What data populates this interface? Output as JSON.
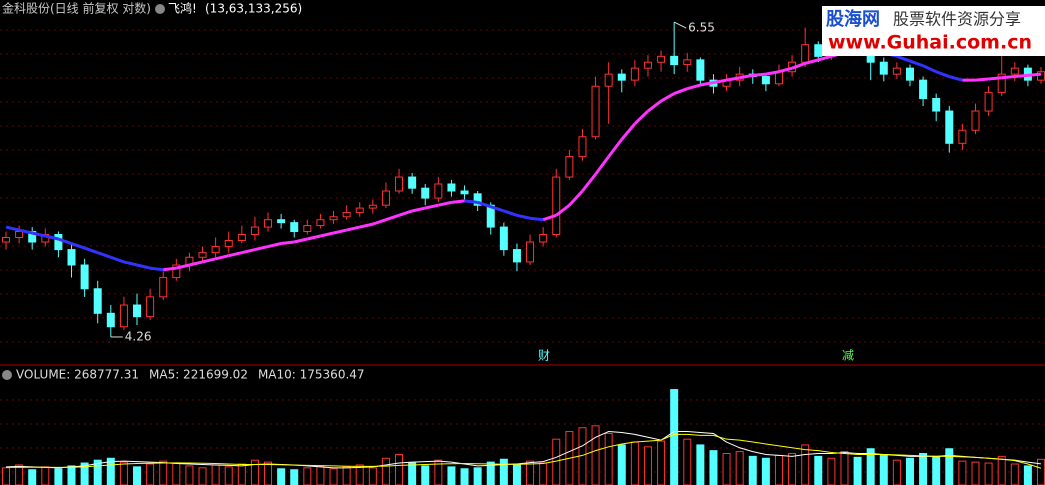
{
  "chart_data": [
    {
      "type": "candlestick",
      "title": "金科股份(日线 前复权 对数)",
      "indicator_name": "飞鸿!",
      "indicator_params": "(13,63,133,256)",
      "log_scale": true,
      "ylim": [
        4.1,
        6.75
      ],
      "grid": true,
      "up_color": "#ff3232",
      "down_color": "#54ffff",
      "high_label": "6.55",
      "low_label": "4.26",
      "events": [
        "财",
        "减"
      ],
      "candles": [
        [
          4.85,
          4.92,
          4.8,
          4.88
        ],
        [
          4.88,
          4.96,
          4.84,
          4.92
        ],
        [
          4.92,
          4.95,
          4.8,
          4.85
        ],
        [
          4.85,
          4.94,
          4.82,
          4.9
        ],
        [
          4.9,
          4.92,
          4.75,
          4.8
        ],
        [
          4.8,
          4.84,
          4.62,
          4.7
        ],
        [
          4.7,
          4.74,
          4.5,
          4.55
        ],
        [
          4.55,
          4.6,
          4.34,
          4.4
        ],
        [
          4.4,
          4.45,
          4.26,
          4.32
        ],
        [
          4.32,
          4.5,
          4.3,
          4.45
        ],
        [
          4.45,
          4.52,
          4.33,
          4.38
        ],
        [
          4.38,
          4.55,
          4.36,
          4.5
        ],
        [
          4.5,
          4.66,
          4.48,
          4.62
        ],
        [
          4.62,
          4.74,
          4.6,
          4.7
        ],
        [
          4.7,
          4.78,
          4.66,
          4.75
        ],
        [
          4.75,
          4.82,
          4.72,
          4.78
        ],
        [
          4.78,
          4.88,
          4.75,
          4.82
        ],
        [
          4.82,
          4.92,
          4.78,
          4.86
        ],
        [
          4.86,
          4.96,
          4.84,
          4.9
        ],
        [
          4.9,
          5.02,
          4.86,
          4.95
        ],
        [
          4.95,
          5.05,
          4.92,
          5.0
        ],
        [
          5.0,
          5.04,
          4.94,
          4.98
        ],
        [
          4.98,
          5.0,
          4.88,
          4.92
        ],
        [
          4.92,
          5.0,
          4.9,
          4.96
        ],
        [
          4.96,
          5.04,
          4.94,
          5.0
        ],
        [
          5.0,
          5.06,
          4.97,
          5.02
        ],
        [
          5.02,
          5.1,
          5.0,
          5.05
        ],
        [
          5.05,
          5.12,
          5.02,
          5.08
        ],
        [
          5.08,
          5.14,
          5.04,
          5.1
        ],
        [
          5.1,
          5.26,
          5.08,
          5.2
        ],
        [
          5.2,
          5.36,
          5.18,
          5.3
        ],
        [
          5.3,
          5.33,
          5.18,
          5.22
        ],
        [
          5.22,
          5.25,
          5.1,
          5.15
        ],
        [
          5.15,
          5.3,
          5.12,
          5.25
        ],
        [
          5.25,
          5.28,
          5.16,
          5.2
        ],
        [
          5.2,
          5.24,
          5.14,
          5.18
        ],
        [
          5.18,
          5.2,
          5.06,
          5.1
        ],
        [
          5.1,
          5.12,
          4.9,
          4.95
        ],
        [
          4.95,
          4.98,
          4.76,
          4.8
        ],
        [
          4.8,
          4.84,
          4.66,
          4.72
        ],
        [
          4.72,
          4.9,
          4.7,
          4.85
        ],
        [
          4.85,
          4.95,
          4.82,
          4.9
        ],
        [
          4.9,
          5.36,
          4.88,
          5.3
        ],
        [
          5.3,
          5.5,
          5.28,
          5.45
        ],
        [
          5.45,
          5.66,
          5.42,
          5.6
        ],
        [
          5.6,
          6.08,
          5.58,
          6.0
        ],
        [
          6.0,
          6.2,
          5.7,
          6.1
        ],
        [
          6.1,
          6.14,
          5.95,
          6.05
        ],
        [
          6.05,
          6.22,
          6.0,
          6.15
        ],
        [
          6.15,
          6.26,
          6.08,
          6.2
        ],
        [
          6.2,
          6.3,
          6.12,
          6.25
        ],
        [
          6.25,
          6.55,
          6.1,
          6.18
        ],
        [
          6.18,
          6.28,
          6.12,
          6.22
        ],
        [
          6.22,
          6.24,
          6.0,
          6.05
        ],
        [
          6.05,
          6.1,
          5.94,
          6.0
        ],
        [
          6.0,
          6.1,
          5.96,
          6.05
        ],
        [
          6.05,
          6.16,
          6.0,
          6.1
        ],
        [
          6.1,
          6.14,
          6.02,
          6.08
        ],
        [
          6.08,
          6.1,
          5.96,
          6.02
        ],
        [
          6.02,
          6.18,
          6.0,
          6.12
        ],
        [
          6.12,
          6.26,
          6.08,
          6.2
        ],
        [
          6.2,
          6.5,
          6.16,
          6.35
        ],
        [
          6.35,
          6.38,
          6.2,
          6.25
        ],
        [
          6.25,
          6.36,
          6.22,
          6.3
        ],
        [
          6.3,
          6.48,
          6.26,
          6.4
        ],
        [
          6.4,
          6.44,
          6.28,
          6.35
        ],
        [
          6.35,
          6.38,
          6.05,
          6.2
        ],
        [
          6.2,
          6.24,
          6.04,
          6.1
        ],
        [
          6.1,
          6.2,
          6.06,
          6.15
        ],
        [
          6.15,
          6.18,
          6.0,
          6.05
        ],
        [
          6.05,
          6.08,
          5.84,
          5.9
        ],
        [
          5.9,
          5.94,
          5.72,
          5.8
        ],
        [
          5.8,
          5.84,
          5.48,
          5.55
        ],
        [
          5.55,
          5.7,
          5.5,
          5.65
        ],
        [
          5.65,
          5.86,
          5.62,
          5.8
        ],
        [
          5.8,
          6.0,
          5.76,
          5.95
        ],
        [
          5.95,
          6.3,
          5.92,
          6.1
        ],
        [
          6.1,
          6.2,
          6.04,
          6.15
        ],
        [
          6.15,
          6.18,
          6.0,
          6.05
        ],
        [
          6.05,
          6.16,
          6.02,
          6.12
        ]
      ],
      "indicator": {
        "rise_color": "#ff33ff",
        "fall_color": "#3333ff",
        "values": [
          4.95,
          4.93,
          4.91,
          4.89,
          4.87,
          4.84,
          4.81,
          4.78,
          4.75,
          4.72,
          4.7,
          4.68,
          4.67,
          4.68,
          4.7,
          4.72,
          4.74,
          4.76,
          4.78,
          4.8,
          4.82,
          4.84,
          4.85,
          4.87,
          4.89,
          4.91,
          4.93,
          4.95,
          4.97,
          5.0,
          5.03,
          5.06,
          5.08,
          5.1,
          5.12,
          5.13,
          5.12,
          5.09,
          5.06,
          5.03,
          5.01,
          5.0,
          5.03,
          5.1,
          5.2,
          5.32,
          5.45,
          5.58,
          5.7,
          5.8,
          5.88,
          5.94,
          5.98,
          6.01,
          6.03,
          6.05,
          6.07,
          6.09,
          6.1,
          6.12,
          6.15,
          6.19,
          6.22,
          6.25,
          6.28,
          6.3,
          6.3,
          6.28,
          6.25,
          6.21,
          6.17,
          6.12,
          6.08,
          6.05,
          6.05,
          6.06,
          6.07,
          6.08,
          6.09,
          6.1
        ]
      },
      "watermark": {
        "brand": "股海网",
        "slogan": "股票软件资源分享",
        "url": "www.Guhai.com.cn"
      }
    },
    {
      "type": "bar",
      "legend": [
        "VOLUME: 268777.31",
        "MA5: 221699.02",
        "MA10: 175360.47"
      ],
      "ylim": [
        0,
        1100000
      ],
      "series": [
        {
          "name": "VOLUME",
          "values": [
            180000,
            210000,
            160000,
            190000,
            170000,
            200000,
            230000,
            260000,
            280000,
            240000,
            190000,
            220000,
            250000,
            230000,
            200000,
            180000,
            210000,
            190000,
            220000,
            260000,
            240000,
            170000,
            160000,
            180000,
            200000,
            170000,
            190000,
            210000,
            180000,
            280000,
            320000,
            230000,
            200000,
            260000,
            190000,
            170000,
            180000,
            240000,
            270000,
            220000,
            250000,
            230000,
            480000,
            560000,
            600000,
            620000,
            540000,
            420000,
            450000,
            400000,
            460000,
            1000000,
            480000,
            420000,
            360000,
            330000,
            350000,
            300000,
            280000,
            310000,
            330000,
            420000,
            300000,
            280000,
            350000,
            290000,
            380000,
            310000,
            260000,
            280000,
            330000,
            300000,
            380000,
            250000,
            240000,
            230000,
            300000,
            220000,
            200000,
            268777.31
          ]
        },
        {
          "name": "MA5",
          "color": "#ffffff",
          "values": [
            190000,
            195000,
            190000,
            185000,
            180000,
            190000,
            200000,
            225000,
            245000,
            250000,
            245000,
            240000,
            235000,
            225000,
            220000,
            215000,
            210000,
            205000,
            200000,
            215000,
            220000,
            215000,
            210000,
            200000,
            190000,
            180000,
            180000,
            185000,
            190000,
            210000,
            230000,
            240000,
            245000,
            250000,
            240000,
            220000,
            200000,
            205000,
            215000,
            220000,
            235000,
            245000,
            290000,
            350000,
            410000,
            500000,
            560000,
            550000,
            530000,
            500000,
            470000,
            560000,
            560000,
            550000,
            540000,
            450000,
            390000,
            350000,
            320000,
            310000,
            300000,
            320000,
            330000,
            330000,
            340000,
            330000,
            330000,
            320000,
            310000,
            300000,
            300000,
            300000,
            310000,
            300000,
            290000,
            280000,
            270000,
            260000,
            240000,
            221699.02
          ]
        },
        {
          "name": "MA10",
          "color": "#ffff00",
          "values": [
            185000,
            185000,
            186000,
            186000,
            185000,
            186000,
            190000,
            200000,
            210000,
            220000,
            225000,
            228000,
            230000,
            232000,
            230000,
            228000,
            225000,
            220000,
            215000,
            215000,
            215000,
            212000,
            208000,
            205000,
            203000,
            200000,
            197000,
            195000,
            195000,
            198000,
            205000,
            210000,
            215000,
            220000,
            222000,
            225000,
            222000,
            220000,
            218000,
            218000,
            220000,
            225000,
            250000,
            280000,
            310000,
            360000,
            400000,
            430000,
            450000,
            460000,
            470000,
            530000,
            530000,
            520000,
            520000,
            480000,
            470000,
            450000,
            430000,
            410000,
            390000,
            370000,
            360000,
            340000,
            330000,
            320000,
            320000,
            320000,
            315000,
            310000,
            305000,
            300000,
            300000,
            295000,
            290000,
            280000,
            270000,
            255000,
            220000,
            175360.47
          ]
        }
      ]
    }
  ]
}
